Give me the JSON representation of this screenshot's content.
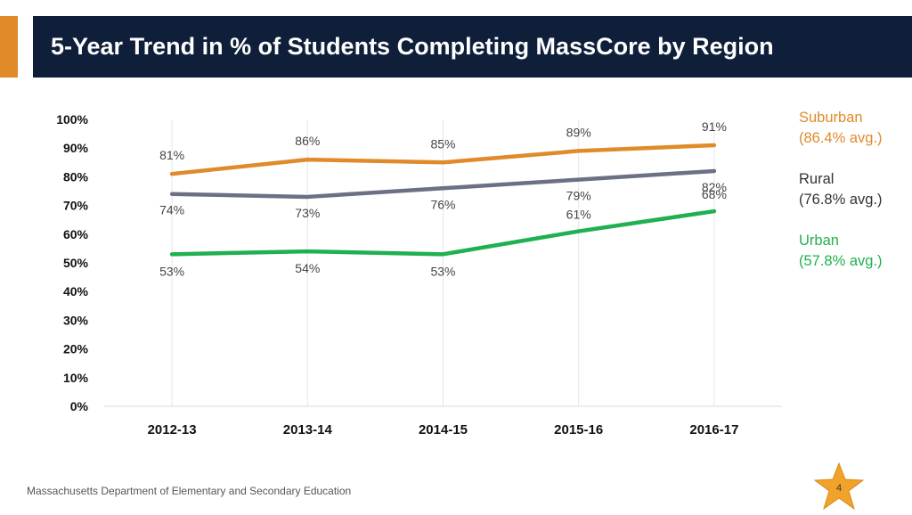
{
  "title": "5-Year Trend in % of Students Completing MassCore by Region",
  "footer": "Massachusetts Department of Elementary and Secondary Education",
  "page_number": "4",
  "colors": {
    "suburban": "#e08a2a",
    "rural": "#6b7085",
    "urban": "#1fb04f",
    "title_bg": "#0f1f3a",
    "accent": "#e08a2a"
  },
  "legend": [
    {
      "name": "Suburban",
      "avg": "(86.4% avg.)",
      "color": "#e08a2a"
    },
    {
      "name": "Rural",
      "avg": "(76.8% avg.)",
      "color": "#333333"
    },
    {
      "name": "Urban",
      "avg": "(57.8% avg.)",
      "color": "#1fb04f"
    }
  ],
  "chart_data": {
    "type": "line",
    "title": "5-Year Trend in % of Students Completing MassCore by Region",
    "categories": [
      "2012-13",
      "2013-14",
      "2014-15",
      "2015-16",
      "2016-17"
    ],
    "ylim": [
      0,
      100
    ],
    "yticks": [
      "0%",
      "10%",
      "20%",
      "30%",
      "40%",
      "50%",
      "60%",
      "70%",
      "80%",
      "90%",
      "100%"
    ],
    "grid": "vertical",
    "legend_position": "right",
    "series": [
      {
        "name": "Suburban",
        "values": [
          81,
          86,
          85,
          89,
          91
        ],
        "labels": [
          "81%",
          "86%",
          "85%",
          "89%",
          "91%"
        ],
        "color": "#e08a2a"
      },
      {
        "name": "Rural",
        "values": [
          74,
          73,
          76,
          79,
          82
        ],
        "labels": [
          "74%",
          "73%",
          "76%",
          "79%",
          "82%"
        ],
        "color": "#6b7085"
      },
      {
        "name": "Urban",
        "values": [
          53,
          54,
          53,
          61,
          68
        ],
        "labels": [
          "53%",
          "54%",
          "53%",
          "61%",
          "68%"
        ],
        "color": "#1fb04f"
      }
    ]
  }
}
